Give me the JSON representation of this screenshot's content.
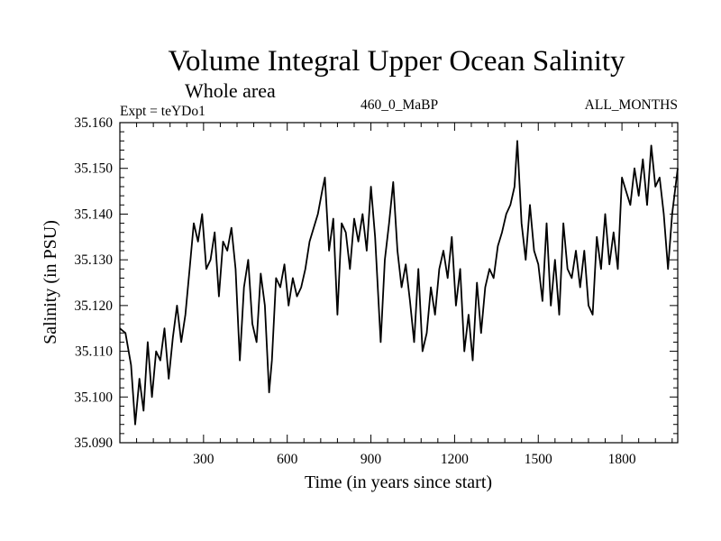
{
  "chart_data": {
    "type": "line",
    "title": "Volume Integral Upper Ocean Salinity",
    "subtitle": "Whole area",
    "left_label": "Expt = teYDo1",
    "center_label": "460_0_MaBP",
    "right_label": "ALL_MONTHS",
    "xlabel": "Time (in years since start)",
    "ylabel": "Salinity (in PSU)",
    "xlim": [
      0,
      2000
    ],
    "ylim": [
      35.09,
      35.16
    ],
    "x_ticks": [
      300,
      600,
      900,
      1200,
      1500,
      1800
    ],
    "y_ticks": [
      "35.090",
      "35.100",
      "35.110",
      "35.120",
      "35.130",
      "35.140",
      "35.150",
      "35.160"
    ],
    "grid": false,
    "series": [
      {
        "name": "Salinity",
        "x": [
          0,
          20,
          40,
          55,
          70,
          85,
          100,
          115,
          130,
          145,
          160,
          175,
          190,
          205,
          220,
          235,
          250,
          265,
          280,
          295,
          310,
          325,
          340,
          355,
          370,
          385,
          400,
          415,
          430,
          445,
          460,
          475,
          490,
          505,
          520,
          535,
          545,
          560,
          575,
          590,
          605,
          620,
          635,
          650,
          665,
          680,
          695,
          710,
          725,
          735,
          750,
          765,
          780,
          795,
          810,
          825,
          840,
          855,
          870,
          885,
          900,
          915,
          935,
          950,
          965,
          980,
          995,
          1010,
          1025,
          1040,
          1055,
          1070,
          1085,
          1100,
          1115,
          1130,
          1145,
          1160,
          1175,
          1190,
          1205,
          1220,
          1235,
          1250,
          1265,
          1280,
          1295,
          1310,
          1325,
          1340,
          1355,
          1370,
          1385,
          1400,
          1415,
          1425,
          1440,
          1455,
          1470,
          1485,
          1500,
          1515,
          1530,
          1545,
          1560,
          1575,
          1590,
          1605,
          1620,
          1635,
          1650,
          1665,
          1680,
          1695,
          1710,
          1725,
          1740,
          1755,
          1770,
          1785,
          1800,
          1815,
          1830,
          1845,
          1860,
          1875,
          1890,
          1905,
          1920,
          1935,
          1950,
          1965,
          1980,
          2000
        ],
        "y": [
          35.115,
          35.114,
          35.107,
          35.094,
          35.104,
          35.097,
          35.112,
          35.1,
          35.11,
          35.108,
          35.115,
          35.104,
          35.113,
          35.12,
          35.112,
          35.118,
          35.128,
          35.138,
          35.134,
          35.14,
          35.128,
          35.13,
          35.136,
          35.122,
          35.134,
          35.132,
          35.137,
          35.128,
          35.108,
          35.124,
          35.13,
          35.116,
          35.112,
          35.127,
          35.12,
          35.101,
          35.108,
          35.126,
          35.124,
          35.129,
          35.12,
          35.126,
          35.122,
          35.124,
          35.128,
          35.134,
          35.137,
          35.14,
          35.145,
          35.148,
          35.132,
          35.139,
          35.118,
          35.138,
          35.136,
          35.128,
          35.139,
          35.134,
          35.14,
          35.132,
          35.146,
          35.135,
          35.112,
          35.13,
          35.138,
          35.147,
          35.132,
          35.124,
          35.129,
          35.121,
          35.112,
          35.128,
          35.11,
          35.114,
          35.124,
          35.118,
          35.128,
          35.132,
          35.126,
          35.135,
          35.12,
          35.128,
          35.11,
          35.118,
          35.108,
          35.125,
          35.114,
          35.124,
          35.128,
          35.126,
          35.133,
          35.136,
          35.14,
          35.142,
          35.146,
          35.156,
          35.138,
          35.13,
          35.142,
          35.132,
          35.129,
          35.121,
          35.138,
          35.12,
          35.13,
          35.118,
          35.138,
          35.128,
          35.126,
          35.132,
          35.124,
          35.132,
          35.12,
          35.118,
          35.135,
          35.128,
          35.14,
          35.129,
          35.136,
          35.128,
          35.148,
          35.145,
          35.142,
          35.15,
          35.144,
          35.152,
          35.142,
          35.155,
          35.146,
          35.148,
          35.14,
          35.128,
          35.14,
          35.15
        ]
      }
    ]
  }
}
